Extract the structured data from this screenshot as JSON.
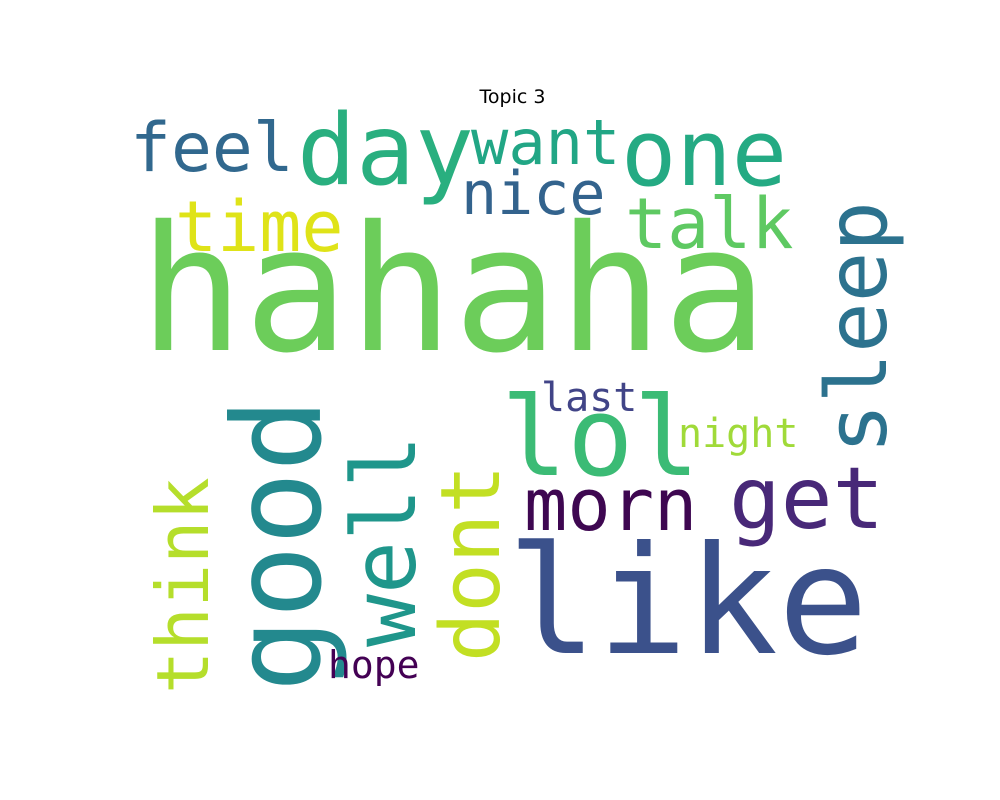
{
  "title": "Topic 3",
  "words": [
    {
      "text": "hahaha",
      "color": "#6ccd5a",
      "rotated": false
    },
    {
      "text": "like",
      "color": "#3b518b",
      "rotated": false
    },
    {
      "text": "good",
      "color": "#23898e",
      "rotated": true
    },
    {
      "text": "lol",
      "color": "#3bbb75",
      "rotated": false
    },
    {
      "text": "day",
      "color": "#29af7f",
      "rotated": false
    },
    {
      "text": "one",
      "color": "#24aa83",
      "rotated": false
    },
    {
      "text": "sleep",
      "color": "#2c728e",
      "rotated": true
    },
    {
      "text": "well",
      "color": "#1f968b",
      "rotated": true
    },
    {
      "text": "dont",
      "color": "#c2df23",
      "rotated": true
    },
    {
      "text": "think",
      "color": "#b5de2b",
      "rotated": true
    },
    {
      "text": "get",
      "color": "#482878",
      "rotated": false
    },
    {
      "text": "morn",
      "color": "#3e0751",
      "rotated": false
    },
    {
      "text": "time",
      "color": "#dfe318",
      "rotated": false
    },
    {
      "text": "talk",
      "color": "#5ec962",
      "rotated": false
    },
    {
      "text": "feel",
      "color": "#31688e",
      "rotated": false
    },
    {
      "text": "want",
      "color": "#21a685",
      "rotated": false
    },
    {
      "text": "nice",
      "color": "#33638d",
      "rotated": false
    },
    {
      "text": "last",
      "color": "#414487",
      "rotated": false
    },
    {
      "text": "night",
      "color": "#a0da39",
      "rotated": false
    },
    {
      "text": "hope",
      "color": "#440154",
      "rotated": false
    }
  ]
}
